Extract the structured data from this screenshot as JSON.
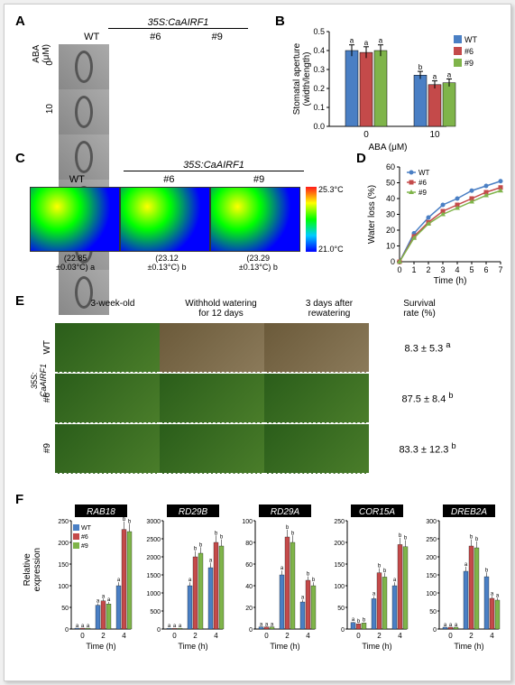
{
  "panelA": {
    "label": "A",
    "headerTop": "35S:CaAIRF1",
    "cols": [
      "WT",
      "#6",
      "#9"
    ],
    "rowLabel": "ABA (μM)",
    "rows": [
      "0",
      "10"
    ]
  },
  "panelB": {
    "label": "B",
    "ylabel": "Stomatal aperture\n(width/length)",
    "xlabel": "ABA (μM)",
    "ylim": [
      0,
      0.5
    ],
    "ytick_step": 0.1,
    "categories": [
      "0",
      "10"
    ],
    "series": [
      {
        "name": "WT",
        "color": "#4a7fc4",
        "values": [
          0.4,
          0.27
        ],
        "err": [
          0.03,
          0.02
        ],
        "letters": [
          "a",
          "b"
        ]
      },
      {
        "name": "#6",
        "color": "#c44a4a",
        "values": [
          0.39,
          0.22
        ],
        "err": [
          0.03,
          0.02
        ],
        "letters": [
          "a",
          "a"
        ]
      },
      {
        "name": "#9",
        "color": "#7fb44a",
        "values": [
          0.4,
          0.23
        ],
        "err": [
          0.03,
          0.02
        ],
        "letters": [
          "a",
          "a"
        ]
      }
    ]
  },
  "panelC": {
    "label": "C",
    "headerTop": "35S:CaAIRF1",
    "cols": [
      "WT",
      "#6",
      "#9"
    ],
    "hiTemp": "25.3°C",
    "loTemp": "21.0°C",
    "temps": [
      "(22.85\n±0.03°C) a",
      "(23.12\n±0.13°C) b",
      "(23.29\n±0.13°C) b"
    ]
  },
  "panelD": {
    "label": "D",
    "ylabel": "Water loss (%)",
    "xlabel": "Time (h)",
    "xlim": [
      0,
      7
    ],
    "ylim": [
      0,
      60
    ],
    "ytick_step": 10,
    "series": [
      {
        "name": "WT",
        "color": "#4a7fc4",
        "marker": "circle",
        "values": [
          [
            0,
            0
          ],
          [
            1,
            18
          ],
          [
            2,
            28
          ],
          [
            3,
            36
          ],
          [
            4,
            40
          ],
          [
            5,
            45
          ],
          [
            6,
            48
          ],
          [
            7,
            51
          ]
        ]
      },
      {
        "name": "#6",
        "color": "#c44a4a",
        "marker": "square",
        "values": [
          [
            0,
            0
          ],
          [
            1,
            16
          ],
          [
            2,
            25
          ],
          [
            3,
            32
          ],
          [
            4,
            36
          ],
          [
            5,
            40
          ],
          [
            6,
            44
          ],
          [
            7,
            47
          ]
        ]
      },
      {
        "name": "#9",
        "color": "#7fb44a",
        "marker": "triangle",
        "values": [
          [
            0,
            0
          ],
          [
            1,
            15
          ],
          [
            2,
            24
          ],
          [
            3,
            30
          ],
          [
            4,
            34
          ],
          [
            5,
            38
          ],
          [
            6,
            42
          ],
          [
            7,
            45
          ]
        ]
      }
    ]
  },
  "panelE": {
    "label": "E",
    "colHeaders": [
      "3-week-old",
      "Withhold watering\nfor 12 days",
      "3 days after\nrewatering",
      "Survival\nrate (%)"
    ],
    "rowGroup": "35S:\nCaAIRF1",
    "rows": [
      {
        "name": "WT",
        "survival": "8.3 ± 5.3",
        "sup": "a",
        "states": [
          "green",
          "dead",
          "dead"
        ]
      },
      {
        "name": "#6",
        "survival": "87.5 ± 8.4",
        "sup": "b",
        "states": [
          "green",
          "green",
          "green"
        ]
      },
      {
        "name": "#9",
        "survival": "83.3 ± 12.3",
        "sup": "b",
        "states": [
          "green",
          "green",
          "green"
        ]
      }
    ]
  },
  "panelF": {
    "label": "F",
    "ylabel": "Relative\nexpression",
    "xlabel": "Time (h)",
    "xcats": [
      "0",
      "2",
      "4"
    ],
    "series": [
      {
        "name": "WT",
        "color": "#4a7fc4"
      },
      {
        "name": "#6",
        "color": "#c44a4a"
      },
      {
        "name": "#9",
        "color": "#7fb44a"
      }
    ],
    "genes": [
      {
        "name": "RAB18",
        "ymax": 250,
        "ystep": 50,
        "data": [
          [
            2,
            2,
            2
          ],
          [
            55,
            65,
            58
          ],
          [
            100,
            230,
            225
          ]
        ],
        "letters": [
          [
            "a",
            "a",
            "a"
          ],
          [
            "a",
            "a",
            "a"
          ],
          [
            "a",
            "b",
            "b"
          ]
        ]
      },
      {
        "name": "RD29B",
        "ymax": 3000,
        "ystep": 500,
        "data": [
          [
            20,
            18,
            22
          ],
          [
            1200,
            2000,
            2100
          ],
          [
            1700,
            2400,
            2300
          ]
        ],
        "letters": [
          [
            "a",
            "a",
            "a"
          ],
          [
            "a",
            "b",
            "b"
          ],
          [
            "a",
            "b",
            "b"
          ]
        ]
      },
      {
        "name": "RD29A",
        "ymax": 100,
        "ystep": 20,
        "data": [
          [
            2,
            2,
            2
          ],
          [
            50,
            85,
            80
          ],
          [
            25,
            45,
            40
          ]
        ],
        "letters": [
          [
            "a",
            "a",
            "a"
          ],
          [
            "a",
            "b",
            "b"
          ],
          [
            "a",
            "b",
            "b"
          ]
        ]
      },
      {
        "name": "COR15A",
        "ymax": 250,
        "ystep": 50,
        "data": [
          [
            15,
            12,
            14
          ],
          [
            70,
            130,
            120
          ],
          [
            100,
            195,
            190
          ]
        ],
        "letters": [
          [
            "a",
            "b",
            "b"
          ],
          [
            "a",
            "b",
            "b"
          ],
          [
            "a",
            "b",
            "b"
          ]
        ]
      },
      {
        "name": "DREB2A",
        "ymax": 300,
        "ystep": 50,
        "data": [
          [
            5,
            5,
            5
          ],
          [
            160,
            230,
            225
          ],
          [
            145,
            85,
            80
          ]
        ],
        "letters": [
          [
            "a",
            "a",
            "a"
          ],
          [
            "a",
            "b",
            "b"
          ],
          [
            "b",
            "a",
            "a"
          ]
        ]
      }
    ]
  }
}
